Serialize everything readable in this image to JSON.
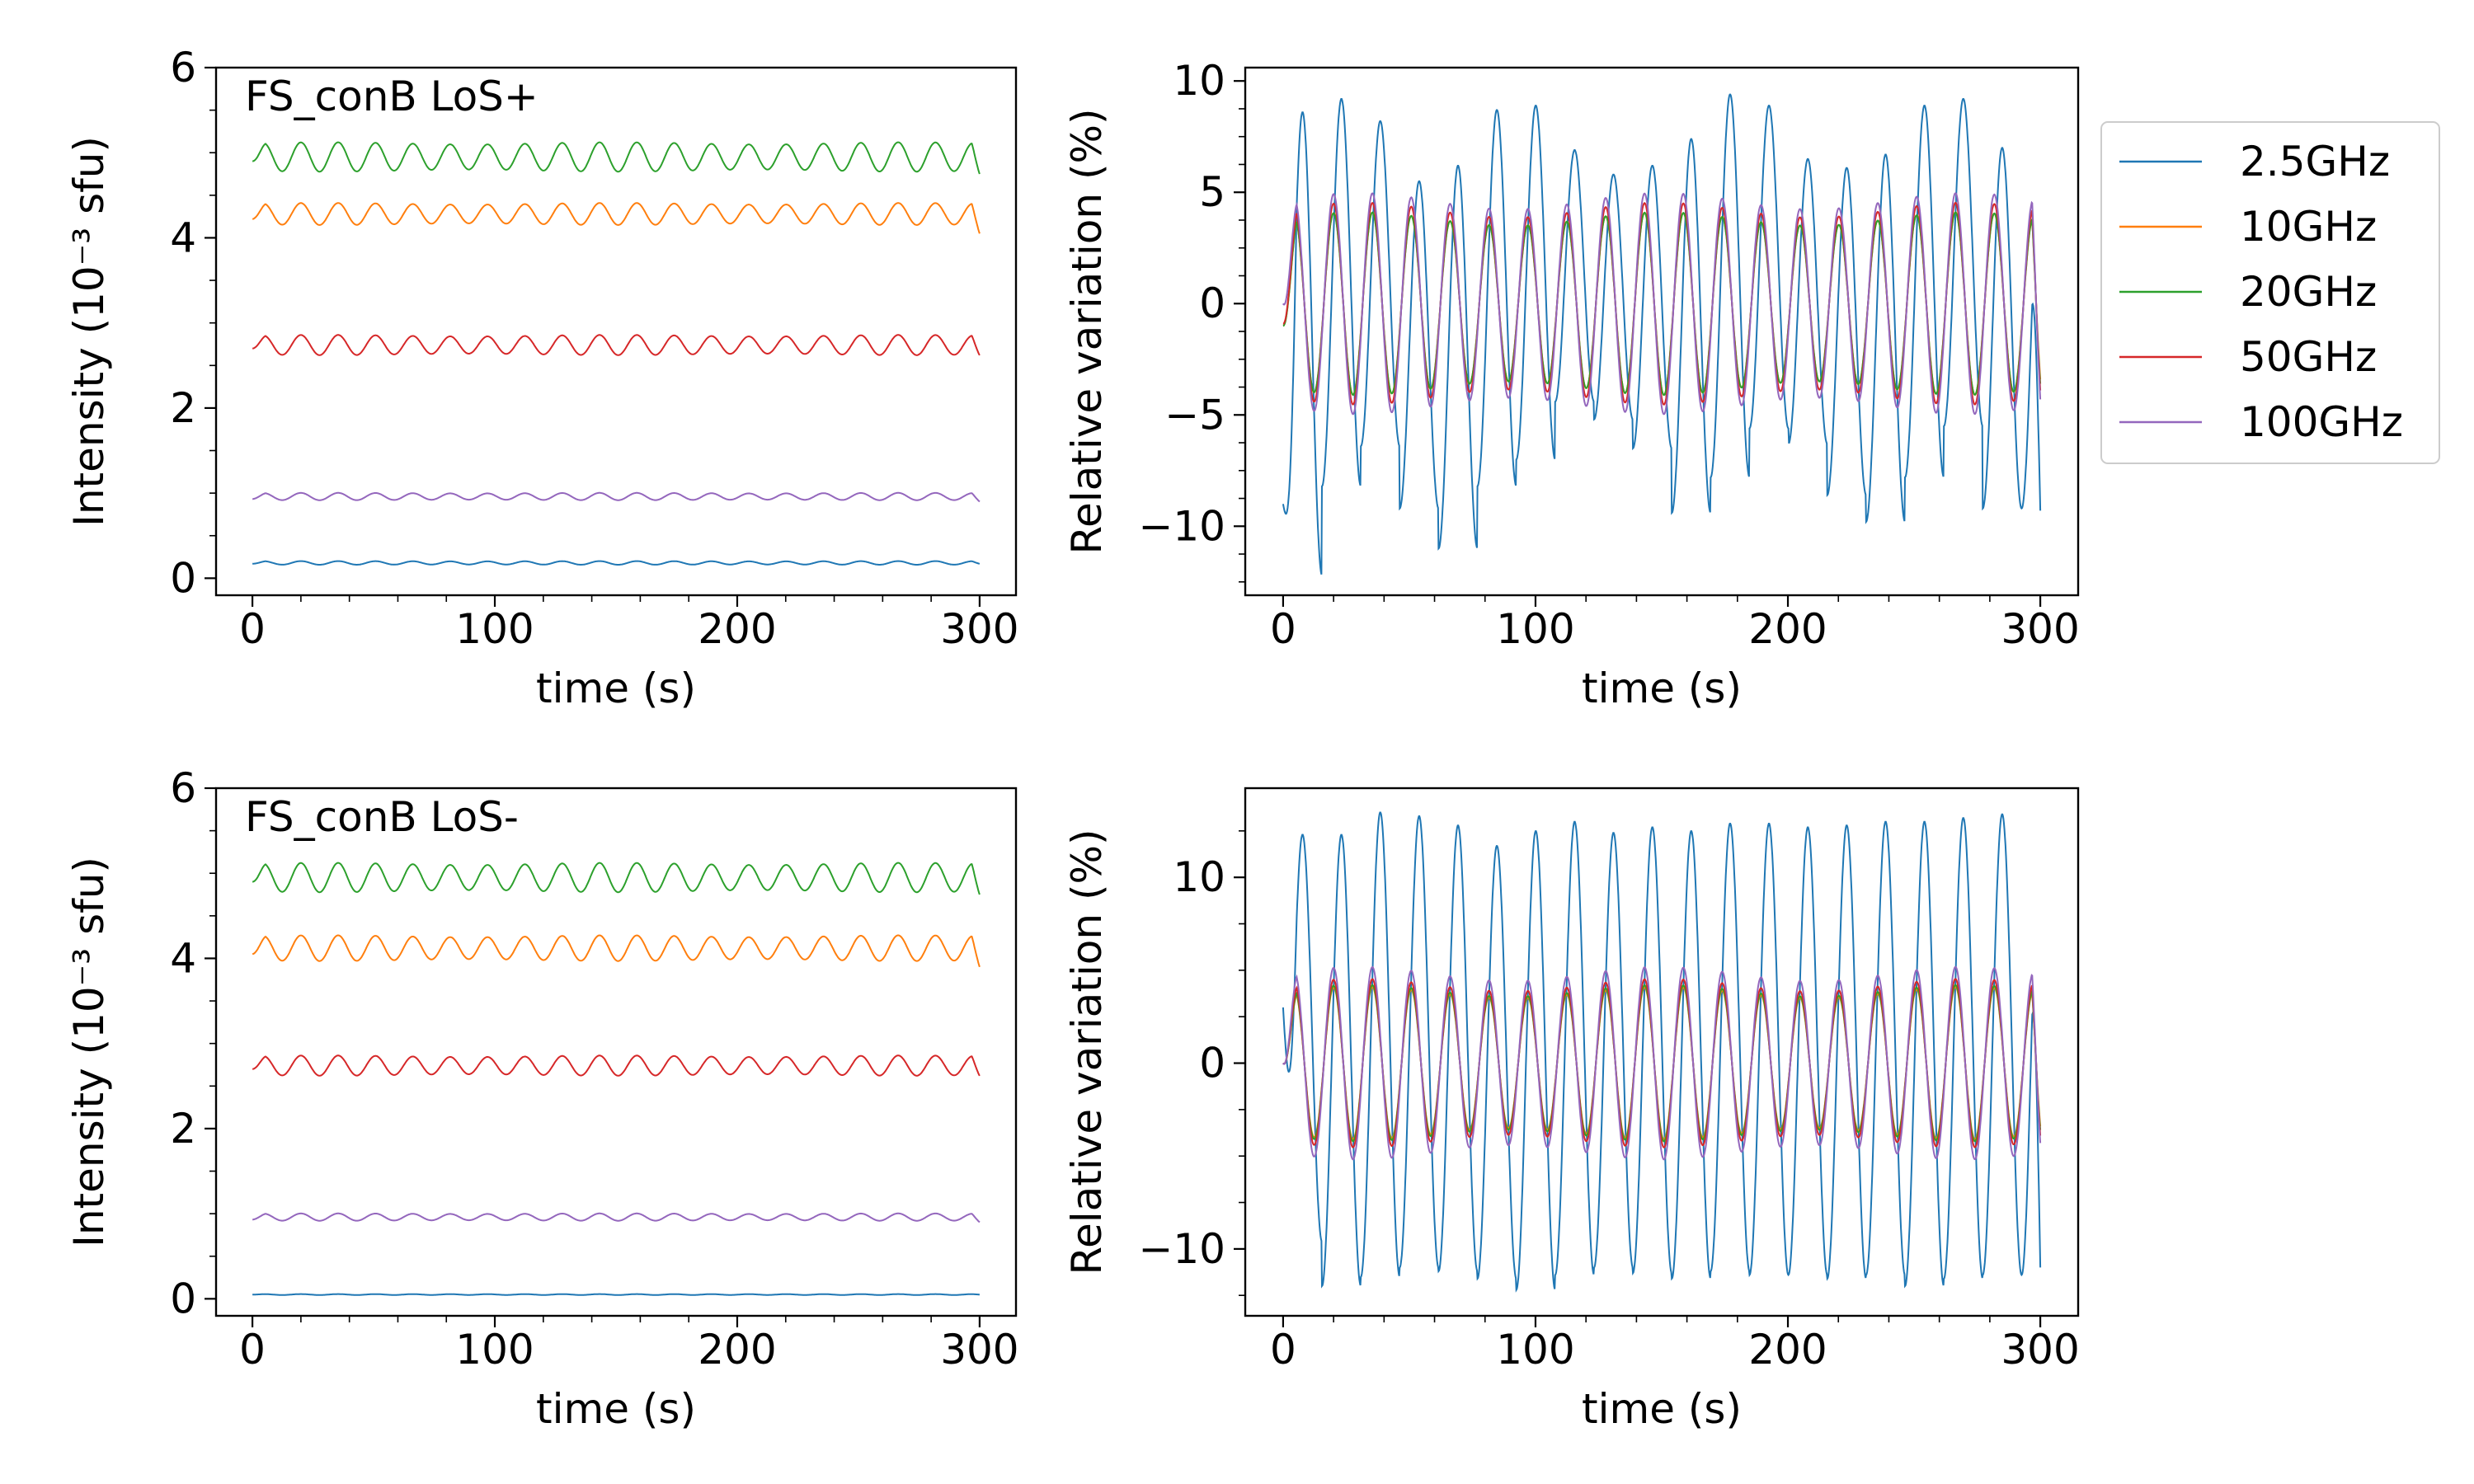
{
  "legend": {
    "placement": "outside-right-of-top-right-panel",
    "entries": [
      {
        "label": "2.5GHz",
        "color": "#1f77b4"
      },
      {
        "label": "10GHz",
        "color": "#ff7f0e"
      },
      {
        "label": "20GHz",
        "color": "#2ca02c"
      },
      {
        "label": "50GHz",
        "color": "#d62728"
      },
      {
        "label": "100GHz",
        "color": "#9467bd"
      }
    ]
  },
  "chart_data": [
    {
      "type": "line",
      "annotation": "FS_conB LoS+",
      "xlabel": "time (s)",
      "ylabel": "Intensity (10⁻³ sfu)",
      "xlim": [
        -15,
        315
      ],
      "ylim": [
        -0.2,
        6
      ],
      "xticks": [
        "0",
        "100",
        "200",
        "300"
      ],
      "yticks": [
        "0",
        "2",
        "4",
        "6"
      ],
      "x": [
        0,
        300
      ],
      "period_s": 15.4,
      "series": [
        {
          "name": "2.5GHz",
          "color": "#1f77b4",
          "mean": 0.18,
          "amplitude": 0.02,
          "start": 0.17,
          "end": 0.17
        },
        {
          "name": "10GHz",
          "color": "#ff7f0e",
          "mean": 4.28,
          "amplitude": 0.12,
          "start": 4.22,
          "end": 4.05
        },
        {
          "name": "20GHz",
          "color": "#2ca02c",
          "mean": 4.95,
          "amplitude": 0.16,
          "start": 4.9,
          "end": 4.75
        },
        {
          "name": "50GHz",
          "color": "#d62728",
          "mean": 2.74,
          "amplitude": 0.11,
          "start": 2.7,
          "end": 2.62
        },
        {
          "name": "100GHz",
          "color": "#9467bd",
          "mean": 0.96,
          "amplitude": 0.04,
          "start": 0.93,
          "end": 0.9
        }
      ]
    },
    {
      "type": "line",
      "xlabel": "time (s)",
      "ylabel": "Relative variation (%)",
      "xlim": [
        -15,
        315
      ],
      "ylim": [
        -13.1,
        10.6
      ],
      "xticks": [
        "0",
        "100",
        "200",
        "300"
      ],
      "yticks": [
        "−10",
        "−5",
        "0",
        "5",
        "10"
      ],
      "x": [
        0,
        300
      ],
      "period_s": 15.4,
      "series": [
        {
          "name": "2.5GHz",
          "color": "#1f77b4",
          "peaks": [
            8.6,
            9.2,
            8.2,
            5.5,
            6.2,
            8.7,
            8.9,
            6.9,
            5.8,
            6.2,
            7.4,
            9.4,
            8.9,
            6.5,
            6.1,
            6.7,
            8.9,
            9.2,
            7.0
          ],
          "troughs": [
            -12.2,
            -8.2,
            -6.4,
            -9.2,
            -11.0,
            -8.2,
            -7.0,
            -4.4,
            -5.2,
            -6.5,
            -9.4,
            -7.8,
            -5.6,
            -6.3,
            -8.6,
            -9.8,
            -7.8,
            -5.5,
            -9.2
          ],
          "start": -9.0,
          "end": -9.3
        },
        {
          "name": "10GHz",
          "color": "#ff7f0e",
          "mean": 0,
          "amplitude": 3.8,
          "start": -1.0,
          "end": -3.4
        },
        {
          "name": "20GHz",
          "color": "#2ca02c",
          "mean": 0,
          "amplitude": 3.8,
          "start": -1.0,
          "end": -3.6
        },
        {
          "name": "50GHz",
          "color": "#d62728",
          "mean": 0,
          "amplitude": 4.2,
          "start": -0.9,
          "end": -3.9
        },
        {
          "name": "100GHz",
          "color": "#9467bd",
          "mean": 0,
          "amplitude": 4.6,
          "start": 0,
          "end": -4.3
        }
      ]
    },
    {
      "type": "line",
      "annotation": "FS_conB LoS-",
      "xlabel": "time (s)",
      "ylabel": "Intensity (10⁻³ sfu)",
      "xlim": [
        -15,
        315
      ],
      "ylim": [
        -0.2,
        6
      ],
      "xticks": [
        "0",
        "100",
        "200",
        "300"
      ],
      "yticks": [
        "0",
        "2",
        "4",
        "6"
      ],
      "x": [
        0,
        300
      ],
      "period_s": 15.4,
      "series": [
        {
          "name": "2.5GHz",
          "color": "#1f77b4",
          "mean": 0.05,
          "amplitude": 0.005,
          "start": 0.05,
          "end": 0.05
        },
        {
          "name": "10GHz",
          "color": "#ff7f0e",
          "mean": 4.12,
          "amplitude": 0.14,
          "start": 4.05,
          "end": 3.9
        },
        {
          "name": "20GHz",
          "color": "#2ca02c",
          "mean": 4.95,
          "amplitude": 0.16,
          "start": 4.9,
          "end": 4.75
        },
        {
          "name": "50GHz",
          "color": "#d62728",
          "mean": 2.74,
          "amplitude": 0.11,
          "start": 2.7,
          "end": 2.62
        },
        {
          "name": "100GHz",
          "color": "#9467bd",
          "mean": 0.96,
          "amplitude": 0.04,
          "start": 0.93,
          "end": 0.9
        }
      ]
    },
    {
      "type": "line",
      "xlabel": "time (s)",
      "ylabel": "Relative variation (%)",
      "xlim": [
        -15,
        315
      ],
      "ylim": [
        -13.6,
        14.8
      ],
      "xticks": [
        "0",
        "100",
        "200",
        "300"
      ],
      "yticks": [
        "−10",
        "0",
        "10"
      ],
      "x": [
        0,
        300
      ],
      "period_s": 15.4,
      "series": [
        {
          "name": "2.5GHz",
          "color": "#1f77b4",
          "peaks": [
            12.3,
            12.3,
            13.5,
            13.3,
            12.8,
            11.7,
            12.5,
            13.0,
            12.4,
            12.7,
            12.5,
            12.9,
            12.9,
            12.7,
            12.8,
            13.0,
            13.0,
            13.2,
            13.4
          ],
          "troughs": [
            -9.6,
            -12.0,
            -11.5,
            -11.0,
            -11.2,
            -11.6,
            -12.2,
            -11.4,
            -11.0,
            -11.3,
            -11.6,
            -11.2,
            -11.4,
            -11.4,
            -11.6,
            -11.4,
            -12.0,
            -11.6,
            -11.4
          ],
          "start": 3.0,
          "end": -11.0
        },
        {
          "name": "10GHz",
          "color": "#ff7f0e",
          "mean": 0,
          "amplitude": 3.8,
          "start": 0,
          "end": -3.4
        },
        {
          "name": "20GHz",
          "color": "#2ca02c",
          "mean": 0,
          "amplitude": 3.9,
          "start": 0,
          "end": -3.6
        },
        {
          "name": "50GHz",
          "color": "#d62728",
          "mean": 0,
          "amplitude": 4.2,
          "start": 0,
          "end": -3.9
        },
        {
          "name": "100GHz",
          "color": "#9467bd",
          "mean": 0,
          "amplitude": 4.8,
          "start": 0,
          "end": -4.3
        }
      ]
    }
  ]
}
